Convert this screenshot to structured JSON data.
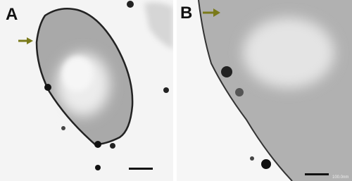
{
  "panels": [
    {
      "label": "A"
    },
    {
      "label": "B",
      "scale_bar": "100.0nm"
    }
  ]
}
